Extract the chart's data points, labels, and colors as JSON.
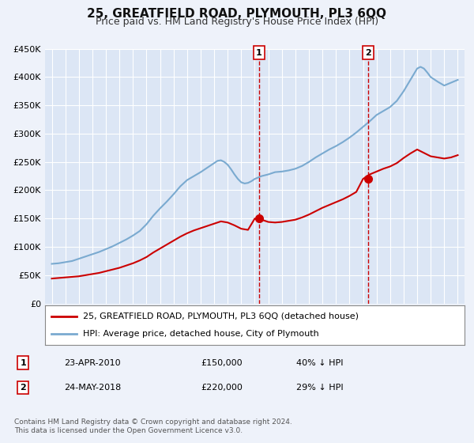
{
  "title": "25, GREATFIELD ROAD, PLYMOUTH, PL3 6QQ",
  "subtitle": "Price paid vs. HM Land Registry's House Price Index (HPI)",
  "title_fontsize": 11,
  "subtitle_fontsize": 9,
  "background_color": "#eef2fa",
  "plot_bg_color": "#dce6f5",
  "grid_color": "#ffffff",
  "red_line_color": "#cc0000",
  "blue_line_color": "#7aaad0",
  "ylim": [
    0,
    450000
  ],
  "yticks": [
    0,
    50000,
    100000,
    150000,
    200000,
    250000,
    300000,
    350000,
    400000,
    450000
  ],
  "ytick_labels": [
    "£0",
    "£50K",
    "£100K",
    "£150K",
    "£200K",
    "£250K",
    "£300K",
    "£350K",
    "£400K",
    "£450K"
  ],
  "xlim_start": 1994.5,
  "xlim_end": 2025.5,
  "sale1_x": 2010.31,
  "sale1_y": 150000,
  "sale2_x": 2018.39,
  "sale2_y": 220000,
  "legend_line1": "25, GREATFIELD ROAD, PLYMOUTH, PL3 6QQ (detached house)",
  "legend_line2": "HPI: Average price, detached house, City of Plymouth",
  "table_row1_num": "1",
  "table_row1_date": "23-APR-2010",
  "table_row1_price": "£150,000",
  "table_row1_hpi": "40% ↓ HPI",
  "table_row2_num": "2",
  "table_row2_date": "24-MAY-2018",
  "table_row2_price": "£220,000",
  "table_row2_hpi": "29% ↓ HPI",
  "footer": "Contains HM Land Registry data © Crown copyright and database right 2024.\nThis data is licensed under the Open Government Licence v3.0.",
  "hpi_years": [
    1995,
    1995.5,
    1996,
    1996.5,
    1997,
    1997.5,
    1998,
    1998.5,
    1999,
    1999.5,
    2000,
    2000.5,
    2001,
    2001.5,
    2002,
    2002.5,
    2003,
    2003.5,
    2004,
    2004.5,
    2005,
    2005.5,
    2006,
    2006.5,
    2007,
    2007.25,
    2007.5,
    2007.75,
    2008,
    2008.25,
    2008.5,
    2008.75,
    2009,
    2009.25,
    2009.5,
    2009.75,
    2010,
    2010.5,
    2011,
    2011.5,
    2012,
    2012.5,
    2013,
    2013.5,
    2014,
    2014.5,
    2015,
    2015.5,
    2016,
    2016.5,
    2017,
    2017.5,
    2018,
    2018.5,
    2019,
    2019.5,
    2020,
    2020.5,
    2021,
    2021.5,
    2022,
    2022.25,
    2022.5,
    2022.75,
    2023,
    2023.5,
    2024,
    2024.5,
    2025
  ],
  "hpi_values": [
    70000,
    71000,
    73000,
    75000,
    79000,
    83000,
    87000,
    91000,
    96000,
    101000,
    107000,
    113000,
    120000,
    128000,
    140000,
    155000,
    168000,
    180000,
    193000,
    207000,
    218000,
    225000,
    232000,
    240000,
    248000,
    252000,
    253000,
    250000,
    245000,
    237000,
    228000,
    220000,
    214000,
    212000,
    213000,
    216000,
    220000,
    225000,
    228000,
    232000,
    233000,
    235000,
    238000,
    243000,
    250000,
    258000,
    265000,
    272000,
    278000,
    285000,
    293000,
    302000,
    312000,
    322000,
    333000,
    340000,
    347000,
    358000,
    375000,
    395000,
    415000,
    418000,
    415000,
    408000,
    400000,
    392000,
    385000,
    390000,
    395000
  ],
  "red_years": [
    1995,
    1995.5,
    1996,
    1996.5,
    1997,
    1997.5,
    1998,
    1998.5,
    1999,
    1999.5,
    2000,
    2000.5,
    2001,
    2001.5,
    2002,
    2002.5,
    2003,
    2003.5,
    2004,
    2004.5,
    2005,
    2005.5,
    2006,
    2006.5,
    2007,
    2007.5,
    2008,
    2008.5,
    2009,
    2009.5,
    2010,
    2010.5,
    2011,
    2011.5,
    2012,
    2012.5,
    2013,
    2013.5,
    2014,
    2014.5,
    2015,
    2015.5,
    2016,
    2016.5,
    2017,
    2017.5,
    2018,
    2018.5,
    2019,
    2019.5,
    2020,
    2020.5,
    2021,
    2021.5,
    2022,
    2022.5,
    2023,
    2023.5,
    2024,
    2024.5,
    2025
  ],
  "red_values": [
    44000,
    45000,
    46000,
    47000,
    48000,
    50000,
    52000,
    54000,
    57000,
    60000,
    63000,
    67000,
    71000,
    76000,
    82000,
    90000,
    97000,
    104000,
    111000,
    118000,
    124000,
    129000,
    133000,
    137000,
    141000,
    145000,
    143000,
    138000,
    132000,
    130000,
    150000,
    148000,
    144000,
    143000,
    144000,
    146000,
    148000,
    152000,
    157000,
    163000,
    169000,
    174000,
    179000,
    184000,
    190000,
    197000,
    220000,
    228000,
    233000,
    238000,
    242000,
    248000,
    257000,
    265000,
    272000,
    266000,
    260000,
    258000,
    256000,
    258000,
    262000
  ]
}
